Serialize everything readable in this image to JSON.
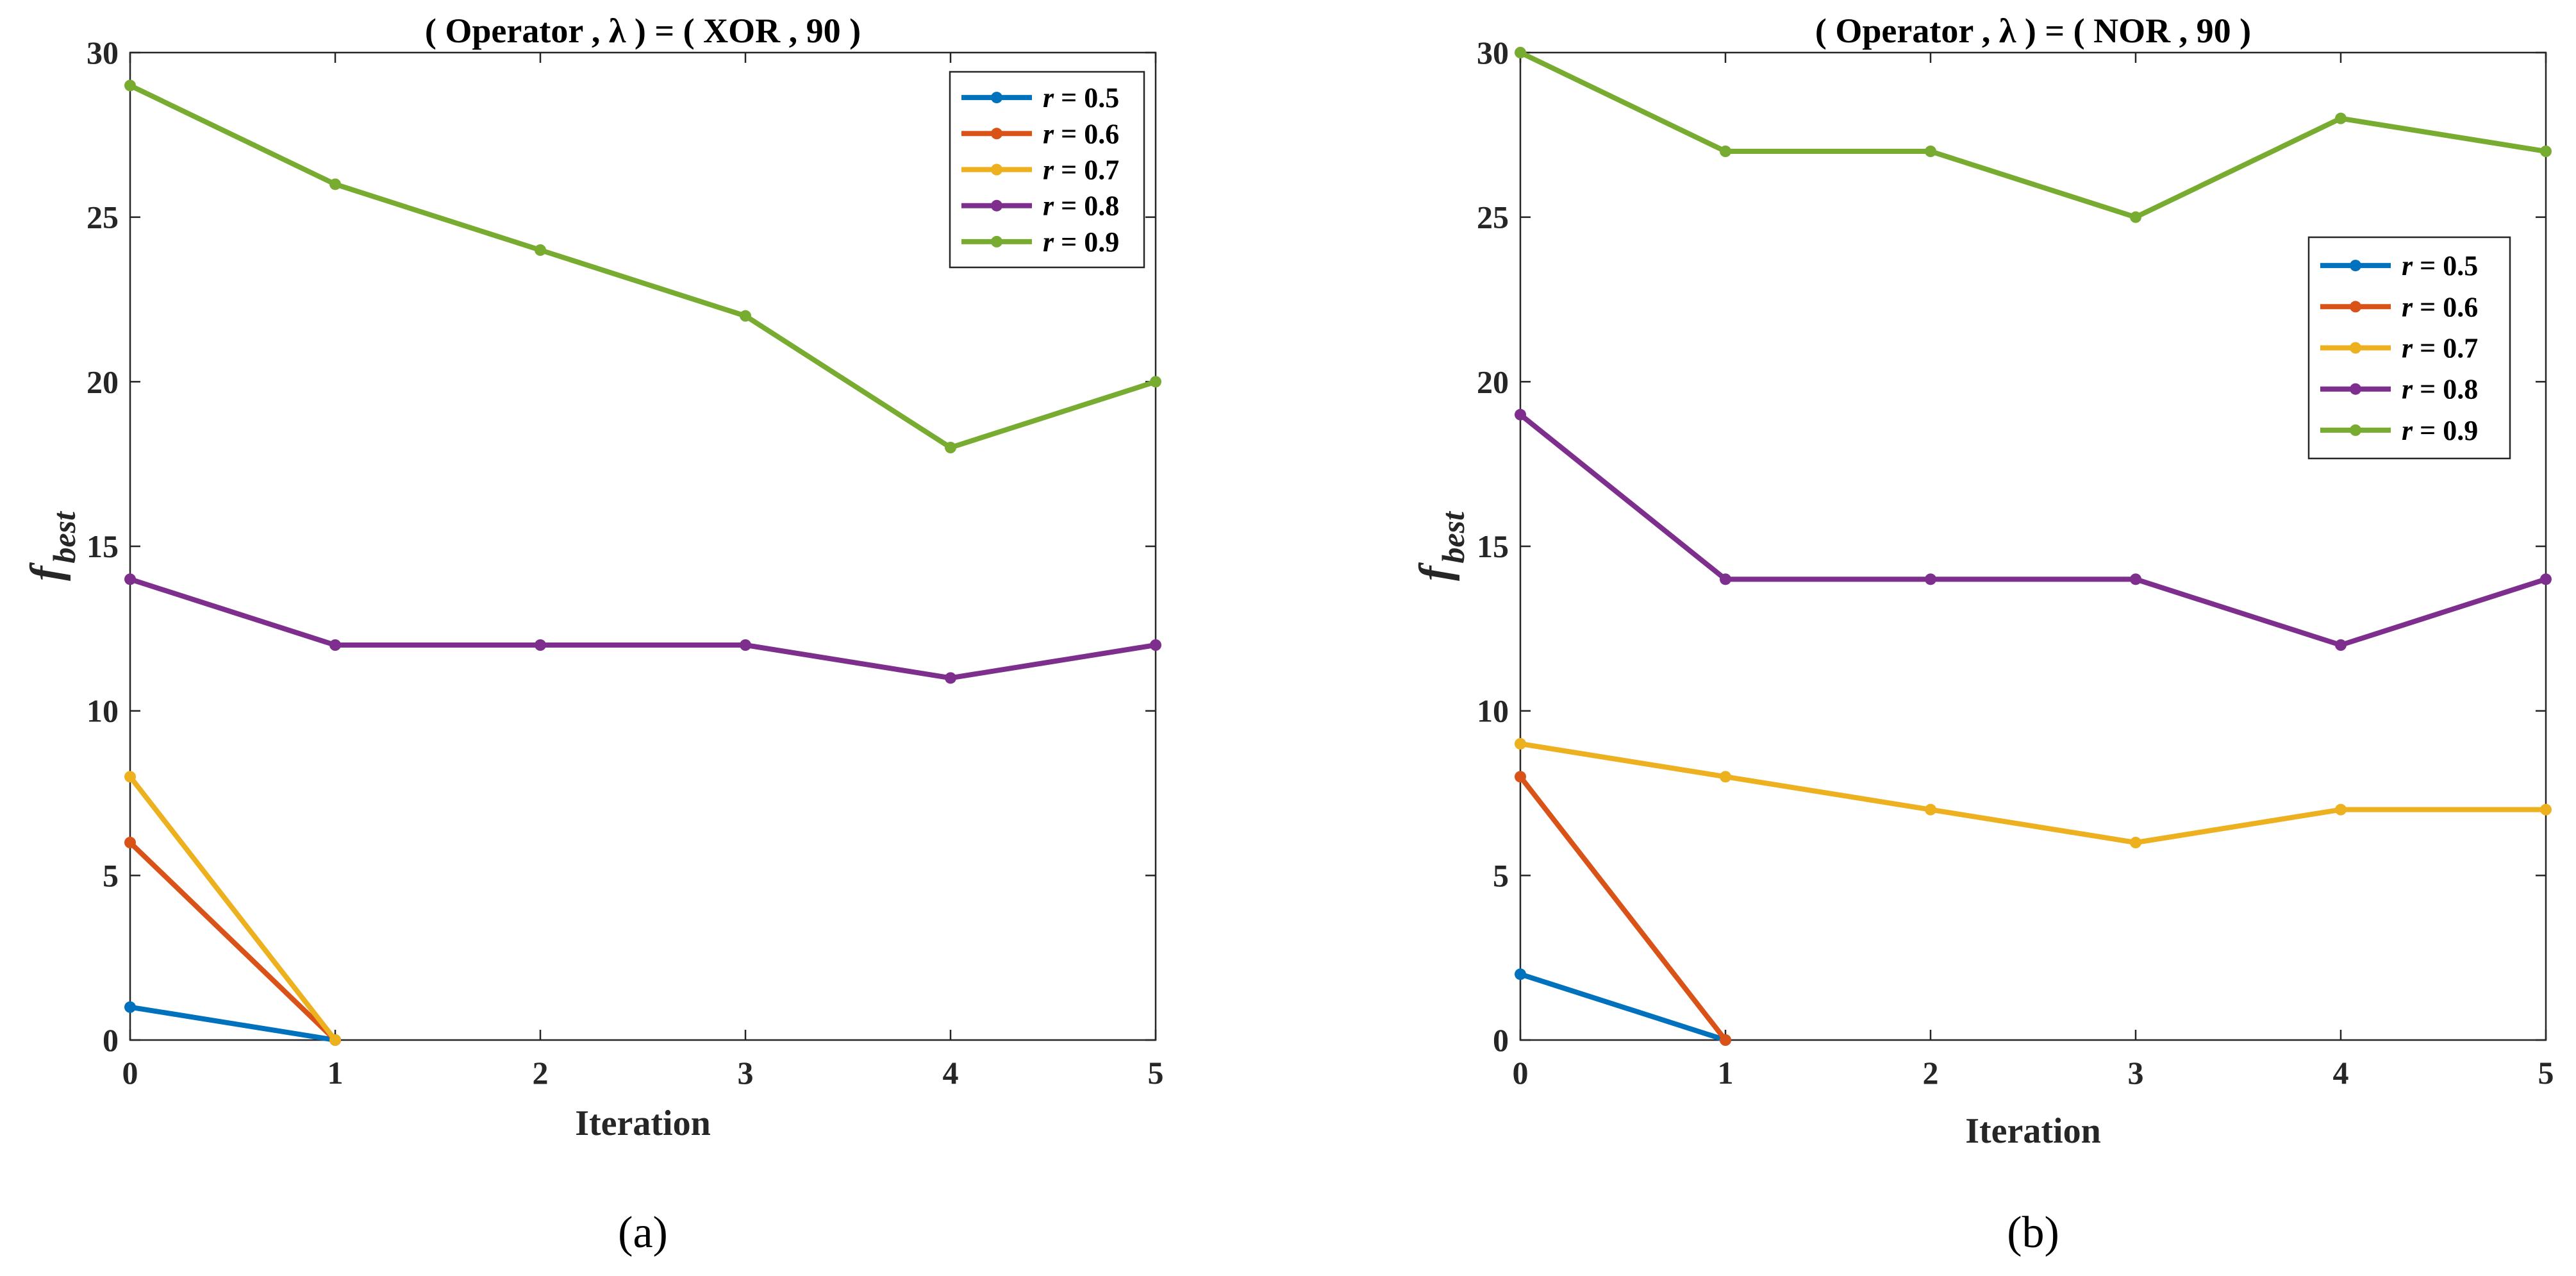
{
  "chart_data": [
    {
      "type": "line",
      "title": "( Operator , λ ) = ( XOR , 90 )",
      "xlabel": "Iteration",
      "ylabel_main": "f",
      "ylabel_sub": "best",
      "panel_label": "(a)",
      "xlim": [
        0,
        5
      ],
      "ylim": [
        0,
        30
      ],
      "xticks": [
        0,
        1,
        2,
        3,
        4,
        5
      ],
      "yticks": [
        0,
        5,
        10,
        15,
        20,
        25,
        30
      ],
      "legend_position": "top-right",
      "series": [
        {
          "name": "r = 0.5",
          "var": "r",
          "label": " = 0.5",
          "color": "#0072BD",
          "x": [
            0,
            1
          ],
          "values": [
            1,
            0
          ]
        },
        {
          "name": "r = 0.6",
          "var": "r",
          "label": " = 0.6",
          "color": "#D95319",
          "x": [
            0,
            1
          ],
          "values": [
            6,
            0
          ]
        },
        {
          "name": "r = 0.7",
          "var": "r",
          "label": " = 0.7",
          "color": "#EDB120",
          "x": [
            0,
            1
          ],
          "values": [
            8,
            0
          ]
        },
        {
          "name": "r = 0.8",
          "var": "r",
          "label": " = 0.8",
          "color": "#7E2F8E",
          "x": [
            0,
            1,
            2,
            3,
            4,
            5
          ],
          "values": [
            14,
            12,
            12,
            12,
            11,
            12
          ]
        },
        {
          "name": "r = 0.9",
          "var": "r",
          "label": " = 0.9",
          "color": "#77AC30",
          "x": [
            0,
            1,
            2,
            3,
            4,
            5
          ],
          "values": [
            29,
            26,
            24,
            22,
            18,
            20
          ]
        }
      ]
    },
    {
      "type": "line",
      "title": "( Operator , λ ) = ( NOR , 90 )",
      "xlabel": "Iteration",
      "ylabel_main": "f",
      "ylabel_sub": "best",
      "panel_label": "(b)",
      "xlim": [
        0,
        5
      ],
      "ylim": [
        0,
        30
      ],
      "xticks": [
        0,
        1,
        2,
        3,
        4,
        5
      ],
      "yticks": [
        0,
        5,
        10,
        15,
        20,
        25,
        30
      ],
      "legend_position": "center-right",
      "series": [
        {
          "name": "r = 0.5",
          "var": "r",
          "label": " = 0.5",
          "color": "#0072BD",
          "x": [
            0,
            1
          ],
          "values": [
            2,
            0
          ]
        },
        {
          "name": "r = 0.6",
          "var": "r",
          "label": " = 0.6",
          "color": "#D95319",
          "x": [
            0,
            1
          ],
          "values": [
            8,
            0
          ]
        },
        {
          "name": "r = 0.7",
          "var": "r",
          "label": " = 0.7",
          "color": "#EDB120",
          "x": [
            0,
            1,
            2,
            3,
            4,
            5
          ],
          "values": [
            9,
            8,
            7,
            6,
            7,
            7
          ]
        },
        {
          "name": "r = 0.8",
          "var": "r",
          "label": " = 0.8",
          "color": "#7E2F8E",
          "x": [
            0,
            1,
            2,
            3,
            4,
            5
          ],
          "values": [
            19,
            14,
            14,
            14,
            12,
            14
          ]
        },
        {
          "name": "r = 0.9",
          "var": "r",
          "label": " = 0.9",
          "color": "#77AC30",
          "x": [
            0,
            1,
            2,
            3,
            4,
            5
          ],
          "values": [
            30,
            27,
            27,
            25,
            28,
            27
          ]
        }
      ]
    }
  ]
}
